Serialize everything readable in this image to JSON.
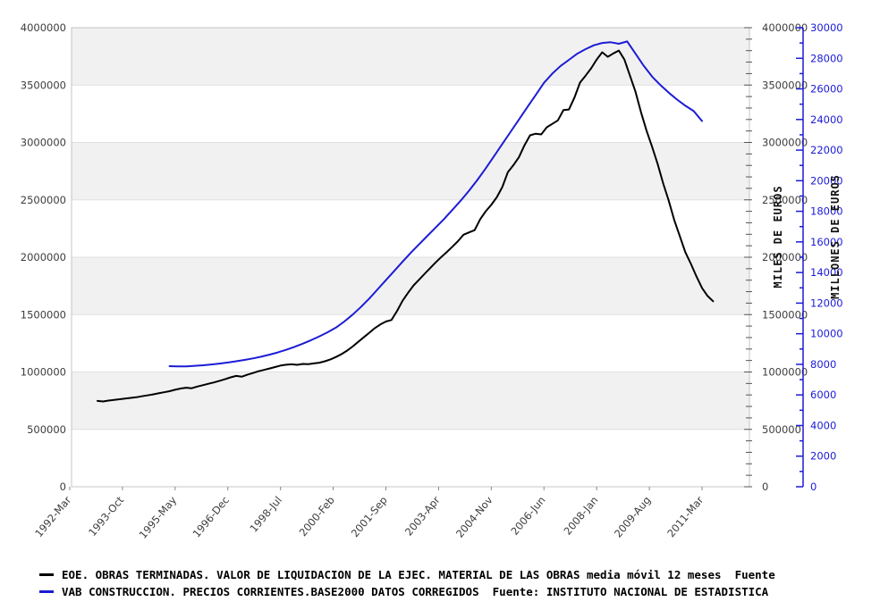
{
  "chart_data": {
    "type": "line",
    "title": "",
    "grid": "horizontal-bands",
    "legend_position": "bottom-left",
    "x_axis": {
      "unit": "months since 1992-03",
      "tick_labels": [
        "1992-Mar",
        "1993-Oct",
        "1995-May",
        "1996-Dec",
        "1998-Jul",
        "2000-Feb",
        "2001-Sep",
        "2003-Apr",
        "2004-Nov",
        "2006-Jun",
        "2008-Jan",
        "2009-Aug",
        "2011-Mar"
      ],
      "tick_months": [
        0,
        19,
        38,
        57,
        76,
        95,
        114,
        133,
        152,
        171,
        190,
        209,
        228
      ]
    },
    "y_left": {
      "range": [
        0,
        4000000
      ],
      "tick_step": 500000,
      "tick_labels": [
        "0",
        "500000",
        "1000000",
        "1500000",
        "2000000",
        "2500000",
        "3000000",
        "3500000",
        "4000000"
      ]
    },
    "y_right_miles": {
      "title": "MILES DE EUROS",
      "range": [
        0,
        4000000
      ],
      "tick_step": 500000,
      "minor_step": 100000,
      "tick_labels": [
        "0",
        "500000",
        "1000000",
        "1500000",
        "2000000",
        "2500000",
        "3000000",
        "3500000",
        "4000000"
      ]
    },
    "y_right_millones": {
      "title": "MILLONES DE EUROS",
      "range": [
        0,
        30000
      ],
      "tick_step": 2000,
      "minor_step": 1000,
      "color": "#1c1cd6",
      "tick_labels": [
        "0",
        "2000",
        "4000",
        "6000",
        "8000",
        "10000",
        "12000",
        "14000",
        "16000",
        "18000",
        "20000",
        "22000",
        "24000",
        "26000",
        "28000",
        "30000"
      ]
    },
    "series": [
      {
        "name": "EOE. OBRAS TERMINADAS. VALOR DE LIQUIDACION DE LA EJEC. MATERIAL DE LAS OBRAS media móvil 12 meses  Fuente",
        "axis": "left",
        "color": "#000000",
        "start_month": 10,
        "step_months": 2,
        "values": [
          748000,
          743000,
          751000,
          757000,
          763000,
          769000,
          774000,
          780000,
          788000,
          796000,
          805000,
          814000,
          823000,
          833000,
          845000,
          856000,
          863000,
          858000,
          873000,
          885000,
          897000,
          909000,
          923000,
          937000,
          953000,
          966000,
          959000,
          976000,
          991000,
          1006000,
          1018000,
          1030000,
          1043000,
          1056000,
          1063000,
          1067000,
          1062000,
          1070000,
          1068000,
          1075000,
          1081000,
          1093000,
          1110000,
          1131000,
          1156000,
          1186000,
          1222000,
          1262000,
          1302000,
          1342000,
          1382000,
          1414000,
          1440000,
          1453000,
          1530000,
          1620000,
          1690000,
          1755000,
          1805000,
          1856000,
          1906000,
          1956000,
          2002000,
          2046000,
          2092000,
          2140000,
          2196000,
          2216000,
          2236000,
          2330000,
          2400000,
          2456000,
          2522000,
          2612000,
          2742000,
          2802000,
          2872000,
          2976000,
          3062000,
          3076000,
          3070000,
          3132000,
          3162000,
          3192000,
          3282000,
          3287000,
          3392000,
          3522000,
          3582000,
          3646000,
          3722000,
          3786000,
          3746000,
          3776000,
          3801000,
          3722000,
          3582000,
          3442000,
          3262000,
          3102000,
          2962000,
          2812000,
          2642000,
          2492000,
          2322000,
          2182000,
          2042000,
          1942000,
          1832000,
          1732000,
          1662000,
          1616000
        ]
      },
      {
        "name": "VAB CONSTRUCCION. PRECIOS CORRIENTES.BASE2000 DATOS CORREGIDOS  Fuente: INSTITUTO NACIONAL DE ESTADISTICA",
        "axis": "right_millones",
        "color": "#1c1cd6",
        "start_month": 36,
        "step_months": 3,
        "values": [
          7880,
          7860,
          7870,
          7900,
          7940,
          7990,
          8050,
          8120,
          8200,
          8290,
          8390,
          8500,
          8630,
          8780,
          8950,
          9140,
          9350,
          9580,
          9830,
          10100,
          10400,
          10800,
          11250,
          11750,
          12300,
          12900,
          13500,
          14100,
          14700,
          15300,
          15850,
          16400,
          16950,
          17500,
          18100,
          18700,
          19350,
          20050,
          20800,
          21600,
          22400,
          23200,
          24000,
          24800,
          25600,
          26400,
          27000,
          27500,
          27900,
          28300,
          28600,
          28850,
          29000,
          29050,
          28950,
          29100,
          28300,
          27500,
          26800,
          26250,
          25750,
          25300,
          24900,
          24550,
          23900
        ]
      }
    ]
  },
  "legend": {
    "items": [
      {
        "label": "EOE. OBRAS TERMINADAS. VALOR DE LIQUIDACION DE LA EJEC. MATERIAL DE LAS OBRAS media móvil 12 meses  Fuente",
        "color": "#000000"
      },
      {
        "label": "VAB CONSTRUCCION. PRECIOS CORRIENTES.BASE2000 DATOS CORREGIDOS  Fuente: INSTITUTO NACIONAL DE ESTADISTICA",
        "color": "#1c1cd6"
      }
    ]
  },
  "style": {
    "band_color": "#f1f1f1",
    "gridline_color": "#e0e0e0",
    "border_color": "#c4c4c4",
    "tick_text_color": "#3d3d3d"
  }
}
